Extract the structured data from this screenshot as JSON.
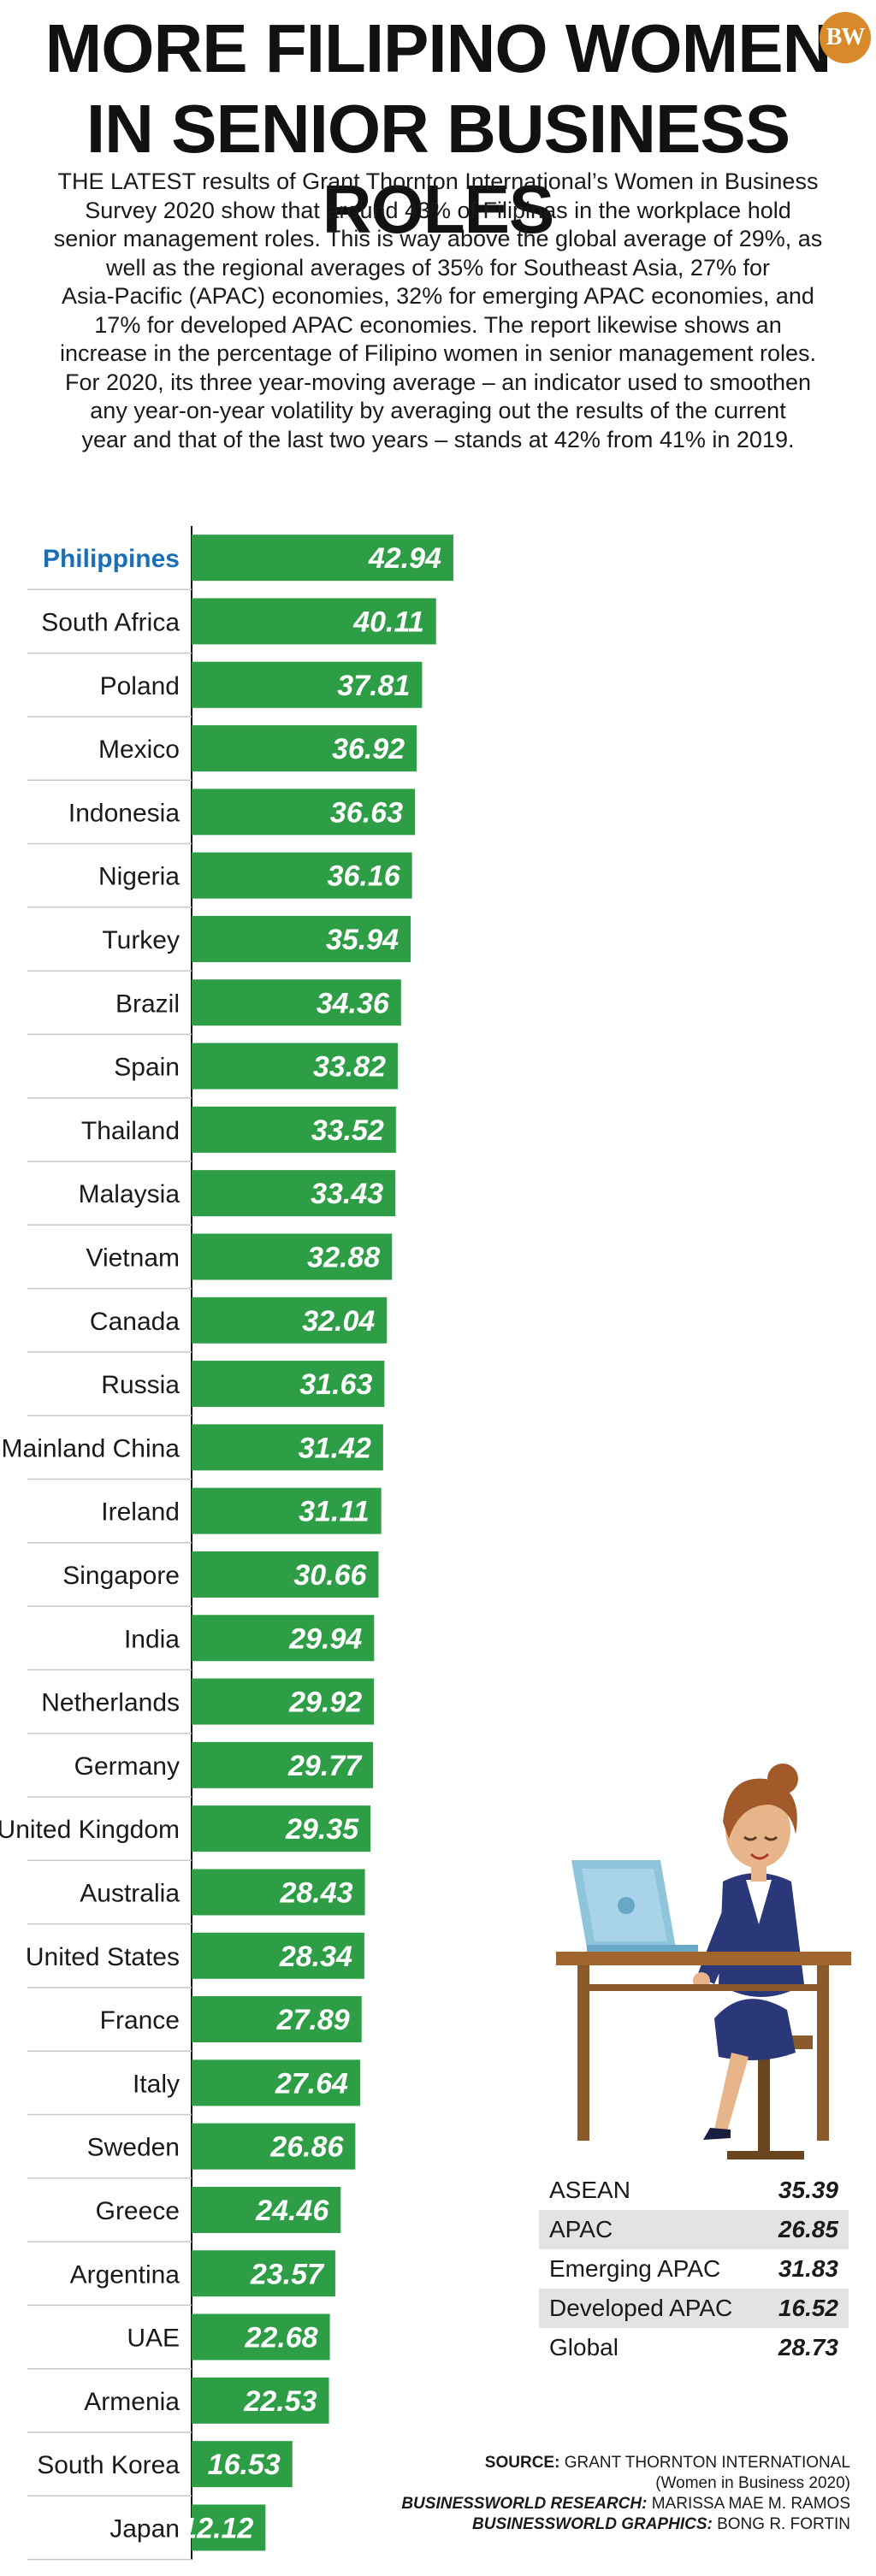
{
  "header": {
    "title_line1": "MORE FILIPINO WOMEN",
    "title_line2": "IN SENIOR BUSINESS ROLES",
    "logo_text": "BW",
    "intro_lines": [
      "THE LATEST results of Grant Thornton International’s Women in Business",
      "Survey 2020 show that around 43% of Filipinas in the workplace hold",
      "senior management roles. This is way above the global average of 29%, as",
      "well as the regional averages of 35% for Southeast Asia, 27% for",
      "Asia-Pacific (APAC) economies, 32% for emerging APAC economies, and",
      "17% for developed APAC economies. The report likewise shows an",
      "increase in the percentage of Filipino women in senior management roles.",
      "For 2020, its three year-moving average – an indicator used to smoothen",
      "any year-on-year volatility by averaging out the results of the current",
      "year and that of the last two years – stands at 42% from 41% in 2019."
    ]
  },
  "colors": {
    "bar": "#2e9e46",
    "bar_dark": "#1f7a33",
    "highlight_label": "#1a6fb5",
    "row_line": "#c8c8c8",
    "logo": "#d88a2a"
  },
  "chart_data": {
    "type": "bar",
    "orientation": "horizontal",
    "highlight": "Philippines",
    "categories": [
      "Philippines",
      "South Africa",
      "Poland",
      "Mexico",
      "Indonesia",
      "Nigeria",
      "Turkey",
      "Brazil",
      "Spain",
      "Thailand",
      "Malaysia",
      "Vietnam",
      "Canada",
      "Russia",
      "Mainland China",
      "Ireland",
      "Singapore",
      "India",
      "Netherlands",
      "Germany",
      "United Kingdom",
      "Australia",
      "United States",
      "France",
      "Italy",
      "Sweden",
      "Greece",
      "Argentina",
      "UAE",
      "Armenia",
      "South Korea",
      "Japan"
    ],
    "values": [
      42.94,
      40.11,
      37.81,
      36.92,
      36.63,
      36.16,
      35.94,
      34.36,
      33.82,
      33.52,
      33.43,
      32.88,
      32.04,
      31.63,
      31.42,
      31.11,
      30.66,
      29.94,
      29.92,
      29.77,
      29.35,
      28.43,
      28.34,
      27.89,
      27.64,
      26.86,
      24.46,
      23.57,
      22.68,
      22.53,
      16.53,
      12.12
    ],
    "xlim": [
      0,
      80
    ]
  },
  "regional": [
    {
      "label": "ASEAN",
      "value": "35.39"
    },
    {
      "label": "APAC",
      "value": "26.85"
    },
    {
      "label": "Emerging APAC",
      "value": "31.83"
    },
    {
      "label": "Developed APAC",
      "value": "16.52"
    },
    {
      "label": "Global",
      "value": "28.73"
    }
  ],
  "credits": {
    "source_label": "SOURCE:",
    "source_text": "GRANT THORNTON INTERNATIONAL",
    "source_sub": "(Women in Business 2020)",
    "research_label": "BUSINESSWORLD RESEARCH:",
    "research_text": "MARISSA MAE M. RAMOS",
    "graphics_label": "BUSINESSWORLD GRAPHICS:",
    "graphics_text": "BONG R. FORTIN"
  }
}
